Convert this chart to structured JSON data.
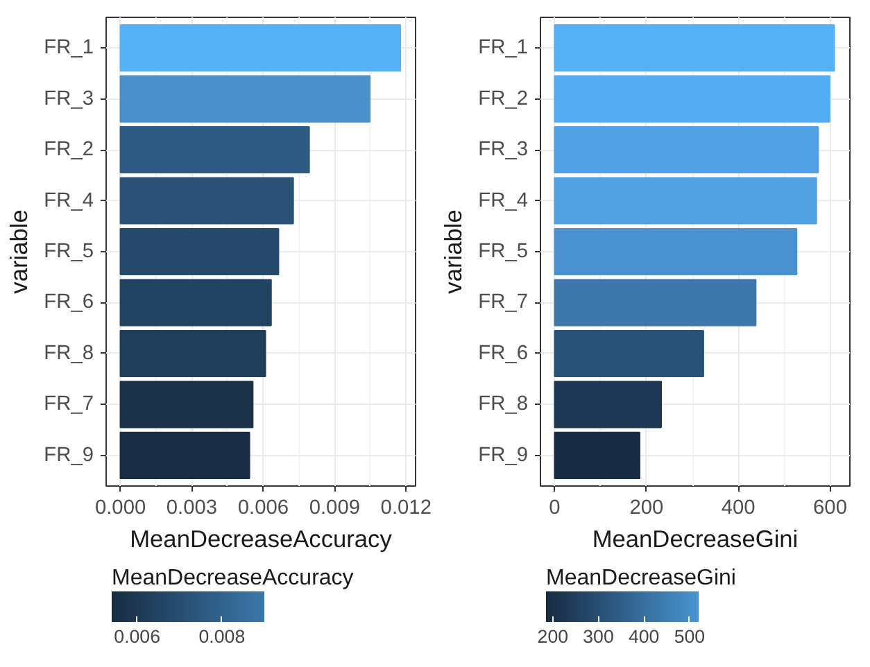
{
  "chart_data": [
    {
      "type": "bar",
      "orientation": "horizontal",
      "categories": [
        "FR_1",
        "FR_3",
        "FR_2",
        "FR_4",
        "FR_5",
        "FR_6",
        "FR_8",
        "FR_7",
        "FR_9"
      ],
      "values": [
        0.01176,
        0.01048,
        0.00793,
        0.00726,
        0.00664,
        0.00633,
        0.00609,
        0.00556,
        0.00542
      ],
      "colors": [
        "#56b1f7",
        "#4a90cb",
        "#2e5b83",
        "#2b5276",
        "#26496b",
        "#234363",
        "#203d5b",
        "#1b3149",
        "#182d45"
      ],
      "xlabel": "MeanDecreaseAccuracy",
      "ylabel": "variable",
      "xlim": [
        -0.0006,
        0.0124
      ],
      "xticks": [
        {
          "value": 0,
          "label": "0.000"
        },
        {
          "value": 0.003,
          "label": "0.003"
        },
        {
          "value": 0.006,
          "label": "0.006"
        },
        {
          "value": 0.009,
          "label": "0.009"
        },
        {
          "value": 0.012,
          "label": "0.012"
        }
      ],
      "grid": true,
      "clabel": "MeanDecreaseAccuracy",
      "clim": [
        0.0054,
        0.009
      ],
      "cticks": [
        {
          "value": 0.006,
          "label": "0.006"
        },
        {
          "value": 0.008,
          "label": "0.008"
        }
      ]
    },
    {
      "type": "bar",
      "orientation": "horizontal",
      "categories": [
        "FR_1",
        "FR_2",
        "FR_3",
        "FR_4",
        "FR_5",
        "FR_7",
        "FR_6",
        "FR_8",
        "FR_9"
      ],
      "values": [
        609,
        599,
        574,
        570,
        527,
        438,
        324,
        232,
        185
      ],
      "colors": [
        "#56b1f7",
        "#54adf2",
        "#51a2e5",
        "#50a0e2",
        "#4a91cf",
        "#3e77ac",
        "#2a5278",
        "#1d3854",
        "#172b42"
      ],
      "xlabel": "MeanDecreaseGini",
      "ylabel": "variable",
      "xlim": [
        -31,
        643
      ],
      "xticks": [
        0,
        200,
        400,
        600
      ],
      "grid": true,
      "clabel": "MeanDecreaseGini",
      "clim": [
        185,
        520
      ],
      "cticks": [
        200,
        300,
        400,
        500
      ]
    }
  ]
}
